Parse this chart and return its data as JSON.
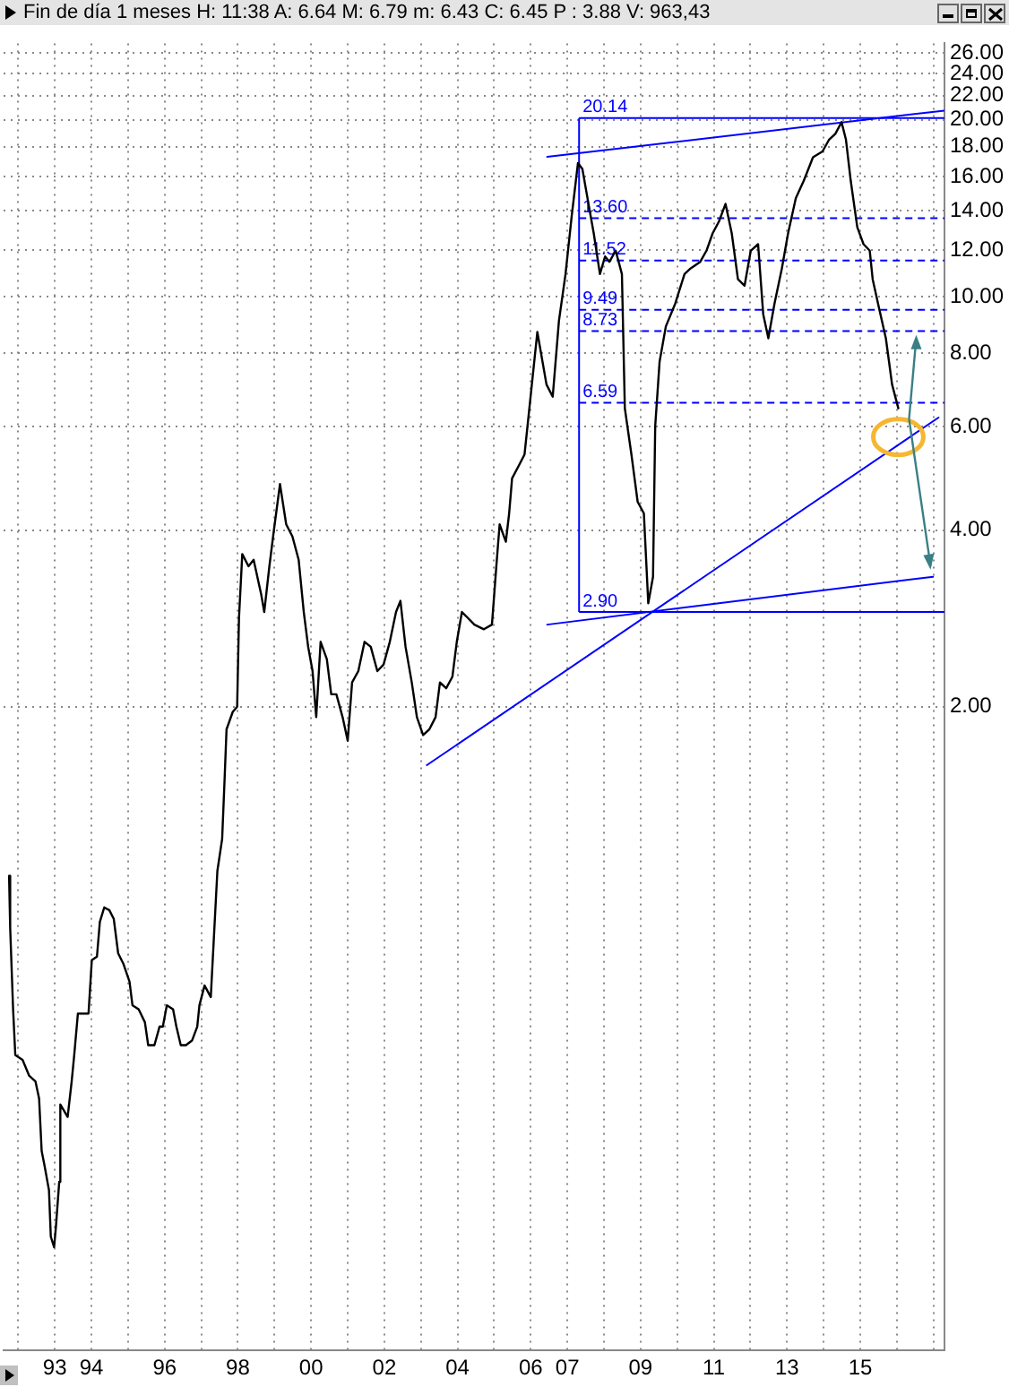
{
  "chart_data": {
    "type": "line",
    "title": "Fin de día 1 meses  H: 11:38  A: 6.64  M: 6.79  m: 6.43  C: 6.45  P : 3.88  V: 963,43",
    "xlim": [
      1991.6,
      2017.3
    ],
    "xticks": [
      {
        "value": 1992,
        "label": null
      },
      {
        "value": 1993,
        "label": "93"
      },
      {
        "value": 1994,
        "label": "94"
      },
      {
        "value": 1995,
        "label": null
      },
      {
        "value": 1996,
        "label": "96"
      },
      {
        "value": 1997,
        "label": null
      },
      {
        "value": 1998,
        "label": "98"
      },
      {
        "value": 1999,
        "label": null
      },
      {
        "value": 2000,
        "label": "00"
      },
      {
        "value": 2001,
        "label": null
      },
      {
        "value": 2002,
        "label": "02"
      },
      {
        "value": 2003,
        "label": null
      },
      {
        "value": 2004,
        "label": "04"
      },
      {
        "value": 2005,
        "label": null
      },
      {
        "value": 2006,
        "label": "06"
      },
      {
        "value": 2007,
        "label": "07"
      },
      {
        "value": 2008,
        "label": null
      },
      {
        "value": 2009,
        "label": "09"
      },
      {
        "value": 2010,
        "label": null
      },
      {
        "value": 2011,
        "label": "11"
      },
      {
        "value": 2012,
        "label": null
      },
      {
        "value": 2013,
        "label": "13"
      },
      {
        "value": 2014,
        "label": null
      },
      {
        "value": 2015,
        "label": "15"
      },
      {
        "value": 2016,
        "label": null
      },
      {
        "value": 2017,
        "label": null
      }
    ],
    "ylim": [
      0.16,
      27
    ],
    "yticks": [
      {
        "value": 2,
        "label": "2.00"
      },
      {
        "value": 4,
        "label": "4.00"
      },
      {
        "value": 6,
        "label": "6.00"
      },
      {
        "value": 8,
        "label": "8.00"
      },
      {
        "value": 10,
        "label": "10.00"
      },
      {
        "value": 12,
        "label": "12.00"
      },
      {
        "value": 14,
        "label": "14.00"
      },
      {
        "value": 16,
        "label": "16.00"
      },
      {
        "value": 18,
        "label": "18.00"
      },
      {
        "value": 20,
        "label": "20.00"
      },
      {
        "value": 22,
        "label": "22.00"
      },
      {
        "value": 24,
        "label": "24.00"
      },
      {
        "value": 26,
        "label": "26.00"
      }
    ],
    "log": "y",
    "grid": true,
    "legend": false,
    "series": [
      {
        "color": "#000000",
        "line_style": "solid",
        "x": [
          1991.75,
          1991.78,
          1991.86,
          1991.92,
          1992.12,
          1992.3,
          1992.47,
          1992.57,
          1992.64,
          1992.72,
          1992.84,
          1992.89,
          1992.98,
          1993.03,
          1993.12,
          1993.15,
          1993.35,
          1993.46,
          1993.53,
          1993.63,
          1993.92,
          1994.01,
          1994.15,
          1994.23,
          1994.35,
          1994.49,
          1994.61,
          1994.73,
          1994.87,
          1995.04,
          1995.12,
          1995.29,
          1995.46,
          1995.55,
          1995.72,
          1995.86,
          1995.95,
          1996.06,
          1996.23,
          1996.32,
          1996.44,
          1996.58,
          1996.75,
          1996.89,
          1996.95,
          1997.09,
          1997.26,
          1997.35,
          1997.44,
          1997.57,
          1997.64,
          1997.69,
          1997.86,
          1997.98,
          1998.03,
          1998.12,
          1998.29,
          1998.43,
          1998.64,
          1998.72,
          1998.86,
          1998.98,
          1999.15,
          1999.32,
          1999.49,
          1999.66,
          1999.8,
          1999.92,
          2000.04,
          2000.14,
          2000.26,
          2000.43,
          2000.55,
          2000.69,
          2000.86,
          2001.0,
          2001.12,
          2001.29,
          2001.46,
          2001.63,
          2001.81,
          2001.98,
          2002.15,
          2002.32,
          2002.44,
          2002.58,
          2002.75,
          2002.89,
          2003.06,
          2003.23,
          2003.4,
          2003.52,
          2003.69,
          2003.86,
          2003.98,
          2004.12,
          2004.29,
          2004.46,
          2004.72,
          2004.94,
          2005.06,
          2005.15,
          2005.32,
          2005.41,
          2005.49,
          2005.66,
          2005.83,
          2006.18,
          2006.43,
          2006.6,
          2006.77,
          2006.95,
          2007.12,
          2007.29,
          2007.41,
          2007.55,
          2007.72,
          2007.89,
          2008.03,
          2008.15,
          2008.32,
          2008.49,
          2008.57,
          2008.75,
          2008.92,
          2009.09,
          2009.21,
          2009.34,
          2009.4,
          2009.52,
          2009.69,
          2009.95,
          2010.2,
          2010.37,
          2010.63,
          2010.8,
          2010.97,
          2011.14,
          2011.32,
          2011.49,
          2011.66,
          2011.84,
          2012.01,
          2012.21,
          2012.35,
          2012.49,
          2012.66,
          2012.86,
          2013.03,
          2013.24,
          2013.46,
          2013.71,
          2013.97,
          2014.15,
          2014.32,
          2014.49,
          2014.61,
          2014.74,
          2014.92,
          2015.09,
          2015.26,
          2015.34,
          2015.52,
          2015.7,
          2015.87,
          2016.04
        ],
        "values": [
          1.03,
          0.84,
          0.61,
          0.51,
          0.5,
          0.47,
          0.46,
          0.43,
          0.35,
          0.33,
          0.3,
          0.25,
          0.24,
          0.26,
          0.31,
          0.42,
          0.4,
          0.46,
          0.51,
          0.6,
          0.6,
          0.74,
          0.75,
          0.86,
          0.91,
          0.9,
          0.87,
          0.76,
          0.73,
          0.68,
          0.62,
          0.61,
          0.58,
          0.53,
          0.53,
          0.57,
          0.57,
          0.62,
          0.61,
          0.57,
          0.53,
          0.53,
          0.54,
          0.57,
          0.62,
          0.67,
          0.64,
          0.82,
          1.05,
          1.19,
          1.52,
          1.83,
          1.96,
          2.0,
          2.83,
          3.64,
          3.47,
          3.56,
          3.1,
          2.9,
          3.47,
          3.98,
          4.79,
          4.09,
          3.9,
          3.56,
          2.9,
          2.53,
          2.3,
          1.92,
          2.58,
          2.41,
          2.1,
          2.1,
          1.92,
          1.75,
          2.2,
          2.3,
          2.58,
          2.53,
          2.3,
          2.36,
          2.58,
          2.9,
          3.03,
          2.53,
          2.2,
          1.92,
          1.79,
          1.83,
          1.92,
          2.2,
          2.15,
          2.25,
          2.58,
          2.9,
          2.83,
          2.76,
          2.71,
          2.76,
          3.47,
          4.09,
          3.82,
          4.27,
          4.9,
          5.13,
          5.38,
          8.7,
          7.08,
          6.75,
          9.09,
          10.92,
          13.74,
          16.88,
          16.5,
          14.71,
          12.82,
          10.92,
          11.7,
          11.46,
          11.97,
          10.92,
          6.45,
          5.38,
          4.47,
          4.27,
          3.0,
          3.33,
          6.02,
          7.75,
          8.89,
          9.74,
          10.92,
          11.17,
          11.46,
          11.97,
          12.82,
          13.42,
          14.38,
          12.82,
          10.7,
          10.43,
          11.97,
          12.28,
          9.33,
          8.49,
          9.74,
          11.17,
          12.82,
          14.71,
          15.76,
          17.27,
          17.67,
          18.51,
          18.93,
          19.82,
          18.51,
          15.76,
          13.12,
          12.28,
          11.97,
          10.7,
          9.52,
          8.49,
          7.08,
          6.45
        ]
      },
      {
        "color": "#0000ff",
        "line_style": "solid",
        "x": [
          2006.45,
          2017.3
        ],
        "values": [
          17.3,
          20.74
        ]
      },
      {
        "color": "#0000ff",
        "line_style": "solid",
        "x": [
          2006.45,
          2016.99
        ],
        "values": [
          2.76,
          3.33
        ]
      },
      {
        "color": "#0000ff",
        "line_style": "solid",
        "x": [
          2003.16,
          2017.14
        ],
        "values": [
          1.59,
          6.22
        ]
      }
    ],
    "ref_lines": [
      {
        "axis": "x",
        "value": 2007.32,
        "color": "#0000ff",
        "line_style": "solid"
      },
      {
        "axis": "y",
        "value": 20.14,
        "label": "20.14",
        "color": "#0000ff",
        "line_style": "solid"
      },
      {
        "axis": "y",
        "value": 13.6,
        "label": "13.60",
        "color": "#0000ff",
        "line_style": "dashed"
      },
      {
        "axis": "y",
        "value": 11.52,
        "label": "11.52",
        "color": "#0000ff",
        "line_style": "dashed"
      },
      {
        "axis": "y",
        "value": 9.49,
        "label": "9.49",
        "color": "#0000ff",
        "line_style": "dashed"
      },
      {
        "axis": "y",
        "value": 8.73,
        "label": "8.73",
        "color": "#0000ff",
        "line_style": "dashed"
      },
      {
        "axis": "y",
        "value": 6.59,
        "label": "6.59",
        "color": "#0000ff",
        "line_style": "dashed"
      },
      {
        "axis": "y",
        "value": 2.9,
        "label": "2.90",
        "color": "#0000ff",
        "line_style": "solid"
      }
    ]
  }
}
